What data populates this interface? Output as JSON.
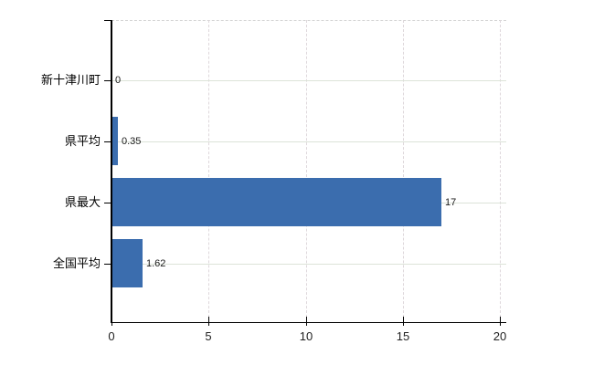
{
  "chart_data": {
    "type": "bar",
    "orientation": "horizontal",
    "title": "",
    "xlabel": "",
    "ylabel": "",
    "categories": [
      "新十津川町",
      "県平均",
      "県最大",
      "全国平均"
    ],
    "values": [
      0,
      0.35,
      17,
      1.62
    ],
    "value_labels": [
      "0",
      "0.35",
      "17",
      "1.62"
    ],
    "x_ticks": [
      0,
      5,
      10,
      15,
      20
    ],
    "x_tick_labels": [
      "0",
      "5",
      "10",
      "15",
      "20"
    ],
    "xlim": [
      0,
      20.35
    ],
    "grid": "on",
    "legend": "none"
  },
  "colors": {
    "background": "#ffffff",
    "bar": "#3b6dae",
    "axis": "#000000",
    "h_gridline": "#dce3d8",
    "v_gridline": "#ded7db",
    "plot_top_border": "#d4d4d4",
    "category_label": "#000000",
    "value_label": "#1a1a1a",
    "tick_label": "#222222"
  }
}
